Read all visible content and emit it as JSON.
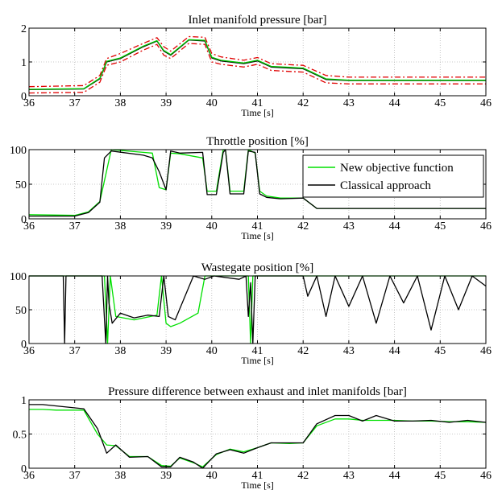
{
  "chart_data": [
    {
      "type": "line",
      "title": "Inlet manifold pressure [bar]",
      "xlabel": "Time [s]",
      "ylabel": "",
      "xlim": [
        36,
        46
      ],
      "ylim": [
        0,
        2
      ],
      "xticks": [
        "36",
        "37",
        "38",
        "39",
        "40",
        "41",
        "42",
        "43",
        "44",
        "45",
        "46"
      ],
      "yticks": [
        "0",
        "1",
        "2"
      ],
      "grid": true,
      "series": [
        {
          "role": "upper bound",
          "color": "#e00000",
          "dash": "dash-dot",
          "x": [
            36,
            37.2,
            37.55,
            37.7,
            38.0,
            38.5,
            38.8,
            38.95,
            39.1,
            39.5,
            39.85,
            40.0,
            40.2,
            40.7,
            41.0,
            41.3,
            41.7,
            42.0,
            42.5,
            43.0,
            46
          ],
          "y": [
            0.27,
            0.3,
            0.6,
            1.1,
            1.25,
            1.55,
            1.72,
            1.45,
            1.32,
            1.75,
            1.73,
            1.25,
            1.15,
            1.05,
            1.13,
            0.95,
            0.92,
            0.9,
            0.6,
            0.55,
            0.55
          ]
        },
        {
          "role": "reference",
          "color": "#000000",
          "dash": "solid",
          "x": [
            36,
            37.2,
            37.55,
            37.7,
            38.0,
            38.5,
            38.8,
            38.95,
            39.1,
            39.5,
            39.85,
            40.0,
            40.2,
            40.7,
            41.0,
            41.3,
            41.7,
            42.0,
            42.5,
            43.0,
            46
          ],
          "y": [
            0.18,
            0.2,
            0.5,
            1.0,
            1.1,
            1.45,
            1.62,
            1.32,
            1.2,
            1.65,
            1.62,
            1.12,
            1.03,
            0.95,
            1.03,
            0.85,
            0.82,
            0.8,
            0.48,
            0.45,
            0.45
          ]
        },
        {
          "role": "measured",
          "color": "#00c800",
          "dash": "solid",
          "x": [
            36,
            37.2,
            37.55,
            37.7,
            38.0,
            38.5,
            38.8,
            38.95,
            39.1,
            39.5,
            39.85,
            40.0,
            40.2,
            40.7,
            41.0,
            41.3,
            41.7,
            42.0,
            42.5,
            43.0,
            46
          ],
          "y": [
            0.19,
            0.21,
            0.52,
            1.02,
            1.12,
            1.47,
            1.63,
            1.34,
            1.22,
            1.66,
            1.64,
            1.14,
            1.05,
            0.97,
            1.05,
            0.87,
            0.84,
            0.82,
            0.5,
            0.46,
            0.46
          ]
        },
        {
          "role": "lower bound",
          "color": "#e00000",
          "dash": "dash-dot",
          "x": [
            36,
            37.2,
            37.55,
            37.7,
            38.0,
            38.5,
            38.8,
            38.95,
            39.1,
            39.5,
            39.85,
            40.0,
            40.2,
            40.7,
            41.0,
            41.3,
            41.7,
            42.0,
            42.5,
            43.0,
            46
          ],
          "y": [
            0.08,
            0.1,
            0.4,
            0.9,
            1.0,
            1.35,
            1.52,
            1.2,
            1.1,
            1.55,
            1.52,
            1.0,
            0.93,
            0.85,
            0.93,
            0.75,
            0.72,
            0.7,
            0.38,
            0.35,
            0.35
          ]
        }
      ]
    },
    {
      "type": "line",
      "title": "Throttle position [%]",
      "xlabel": "Time [s]",
      "ylabel": "",
      "xlim": [
        36,
        46
      ],
      "ylim": [
        0,
        100
      ],
      "xticks": [
        "36",
        "37",
        "38",
        "39",
        "40",
        "41",
        "42",
        "43",
        "44",
        "45",
        "46"
      ],
      "yticks": [
        "0",
        "50",
        "100"
      ],
      "grid": true,
      "legend": {
        "position": "top-right",
        "entries": [
          "New objective function",
          "Classical approach"
        ]
      },
      "series": [
        {
          "name": "New objective function",
          "color": "#00e000",
          "x": [
            36,
            37.0,
            37.3,
            37.55,
            37.65,
            37.8,
            38.5,
            38.7,
            38.85,
            39.0,
            39.1,
            39.3,
            39.8,
            39.9,
            40.1,
            40.25,
            40.3,
            40.4,
            40.7,
            40.8,
            40.95,
            41.05,
            41.2,
            41.5,
            42.0,
            42.3,
            46
          ],
          "y": [
            6,
            5,
            10,
            25,
            55,
            100,
            96,
            95,
            45,
            42,
            95,
            94,
            88,
            40,
            40,
            100,
            100,
            40,
            40,
            100,
            95,
            40,
            33,
            30,
            30,
            15,
            15
          ]
        },
        {
          "name": "Classical approach",
          "color": "#000000",
          "x": [
            36,
            37.0,
            37.3,
            37.55,
            37.65,
            37.8,
            38.5,
            38.7,
            38.85,
            39.0,
            39.1,
            39.3,
            39.8,
            39.9,
            40.1,
            40.25,
            40.3,
            40.4,
            40.7,
            40.8,
            40.95,
            41.05,
            41.2,
            41.5,
            42.0,
            42.3,
            46
          ],
          "y": [
            4,
            4,
            9,
            24,
            88,
            98,
            92,
            88,
            68,
            42,
            98,
            95,
            96,
            35,
            35,
            96,
            100,
            36,
            36,
            98,
            96,
            36,
            31,
            29,
            30,
            15,
            15
          ]
        }
      ]
    },
    {
      "type": "line",
      "title": "Wastegate position [%]",
      "xlabel": "Time [s]",
      "ylabel": "",
      "xlim": [
        36,
        46
      ],
      "ylim": [
        0,
        100
      ],
      "xticks": [
        "36",
        "37",
        "38",
        "39",
        "40",
        "41",
        "42",
        "43",
        "44",
        "45",
        "46"
      ],
      "yticks": [
        "0",
        "50",
        "100"
      ],
      "grid": true,
      "series": [
        {
          "role": "new objective function",
          "color": "#00e000",
          "x": [
            36,
            37.65,
            37.72,
            37.78,
            37.9,
            38.3,
            38.8,
            38.9,
            39.0,
            39.1,
            39.3,
            39.7,
            39.85,
            40.1,
            40.8,
            40.85,
            40.9,
            40.95,
            46
          ],
          "y": [
            100,
            100,
            0,
            100,
            40,
            35,
            42,
            100,
            30,
            25,
            30,
            45,
            100,
            100,
            100,
            0,
            100,
            100,
            100
          ]
        },
        {
          "role": "classical approach",
          "color": "#000000",
          "x": [
            36,
            36.75,
            36.78,
            36.81,
            37.6,
            37.68,
            37.72,
            37.75,
            37.82,
            38.0,
            38.3,
            38.6,
            38.85,
            38.95,
            39.05,
            39.2,
            39.6,
            39.85,
            40.05,
            40.6,
            40.75,
            40.8,
            40.85,
            40.9,
            40.95,
            41.0,
            42.0,
            42.1,
            42.3,
            42.5,
            42.7,
            43.0,
            43.3,
            43.6,
            43.9,
            44.2,
            44.5,
            44.8,
            45.1,
            45.4,
            45.7,
            46.0
          ],
          "y": [
            100,
            100,
            0,
            100,
            100,
            0,
            100,
            60,
            30,
            45,
            38,
            42,
            40,
            100,
            40,
            35,
            100,
            95,
            100,
            95,
            100,
            40,
            90,
            0,
            100,
            100,
            100,
            70,
            100,
            40,
            100,
            55,
            100,
            30,
            100,
            60,
            100,
            20,
            100,
            50,
            100,
            85
          ]
        }
      ]
    },
    {
      "type": "line",
      "title": "Pressure difference between exhaust and inlet manifolds [bar]",
      "xlabel": "Time [s]",
      "ylabel": "",
      "xlim": [
        36,
        46
      ],
      "ylim": [
        0,
        1
      ],
      "xticks": [
        "36",
        "37",
        "38",
        "39",
        "40",
        "41",
        "42",
        "43",
        "44",
        "45",
        "46"
      ],
      "yticks": [
        "0",
        "0.5",
        "1"
      ],
      "grid": true,
      "series": [
        {
          "role": "new objective function",
          "color": "#00e000",
          "x": [
            36,
            36.3,
            36.6,
            36.9,
            37.2,
            37.5,
            37.7,
            37.9,
            38.2,
            38.6,
            38.9,
            39.1,
            39.3,
            39.6,
            39.8,
            40.1,
            40.4,
            40.7,
            41.0,
            41.3,
            41.7,
            42.0,
            42.3,
            42.7,
            43.0,
            43.3,
            43.6,
            44.0,
            44.4,
            44.8,
            45.2,
            45.6,
            46.0
          ],
          "y": [
            0.86,
            0.86,
            0.85,
            0.85,
            0.85,
            0.5,
            0.34,
            0.33,
            0.17,
            0.17,
            0.04,
            0.03,
            0.15,
            0.08,
            0.02,
            0.2,
            0.28,
            0.24,
            0.3,
            0.37,
            0.36,
            0.37,
            0.62,
            0.72,
            0.72,
            0.7,
            0.7,
            0.7,
            0.69,
            0.69,
            0.68,
            0.68,
            0.67
          ]
        },
        {
          "role": "classical approach",
          "color": "#000000",
          "x": [
            36,
            36.3,
            36.6,
            36.9,
            37.2,
            37.5,
            37.7,
            37.9,
            38.2,
            38.6,
            38.9,
            39.1,
            39.3,
            39.6,
            39.8,
            40.1,
            40.4,
            40.7,
            41.0,
            41.3,
            41.7,
            42.0,
            42.3,
            42.7,
            43.0,
            43.3,
            43.6,
            44.0,
            44.4,
            44.8,
            45.2,
            45.6,
            46.0
          ],
          "y": [
            0.93,
            0.93,
            0.91,
            0.89,
            0.87,
            0.58,
            0.22,
            0.34,
            0.16,
            0.17,
            0.02,
            0.02,
            0.16,
            0.09,
            0.0,
            0.21,
            0.27,
            0.22,
            0.3,
            0.37,
            0.37,
            0.37,
            0.65,
            0.77,
            0.77,
            0.69,
            0.77,
            0.69,
            0.69,
            0.7,
            0.67,
            0.7,
            0.67
          ]
        }
      ]
    }
  ]
}
